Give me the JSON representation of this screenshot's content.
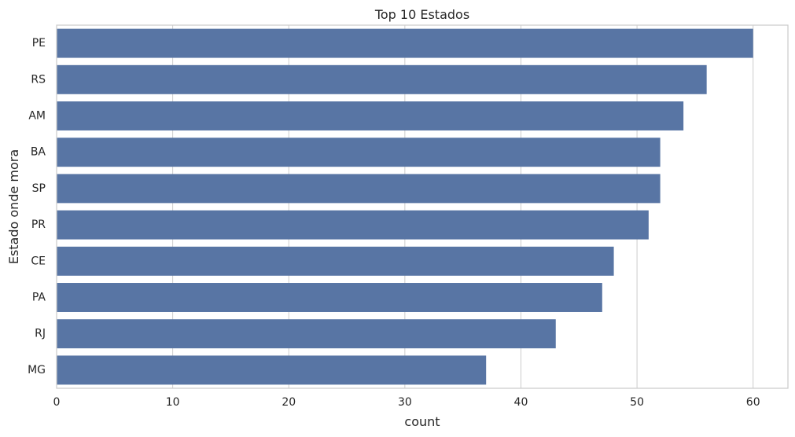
{
  "chart_data": {
    "type": "bar",
    "orientation": "horizontal",
    "title": "Top 10 Estados",
    "xlabel": "count",
    "ylabel": "Estado onde mora",
    "categories": [
      "PE",
      "RS",
      "AM",
      "BA",
      "SP",
      "PR",
      "CE",
      "PA",
      "RJ",
      "MG"
    ],
    "values": [
      60,
      56,
      54,
      52,
      52,
      51,
      48,
      47,
      43,
      37
    ],
    "xlim": [
      0,
      63
    ],
    "xticks": [
      0,
      10,
      20,
      30,
      40,
      50,
      60
    ],
    "grid": true,
    "bar_color": "#5875a4",
    "grid_color": "#cccccc",
    "frame_color": "#cccccc",
    "text_color": "#262626"
  }
}
